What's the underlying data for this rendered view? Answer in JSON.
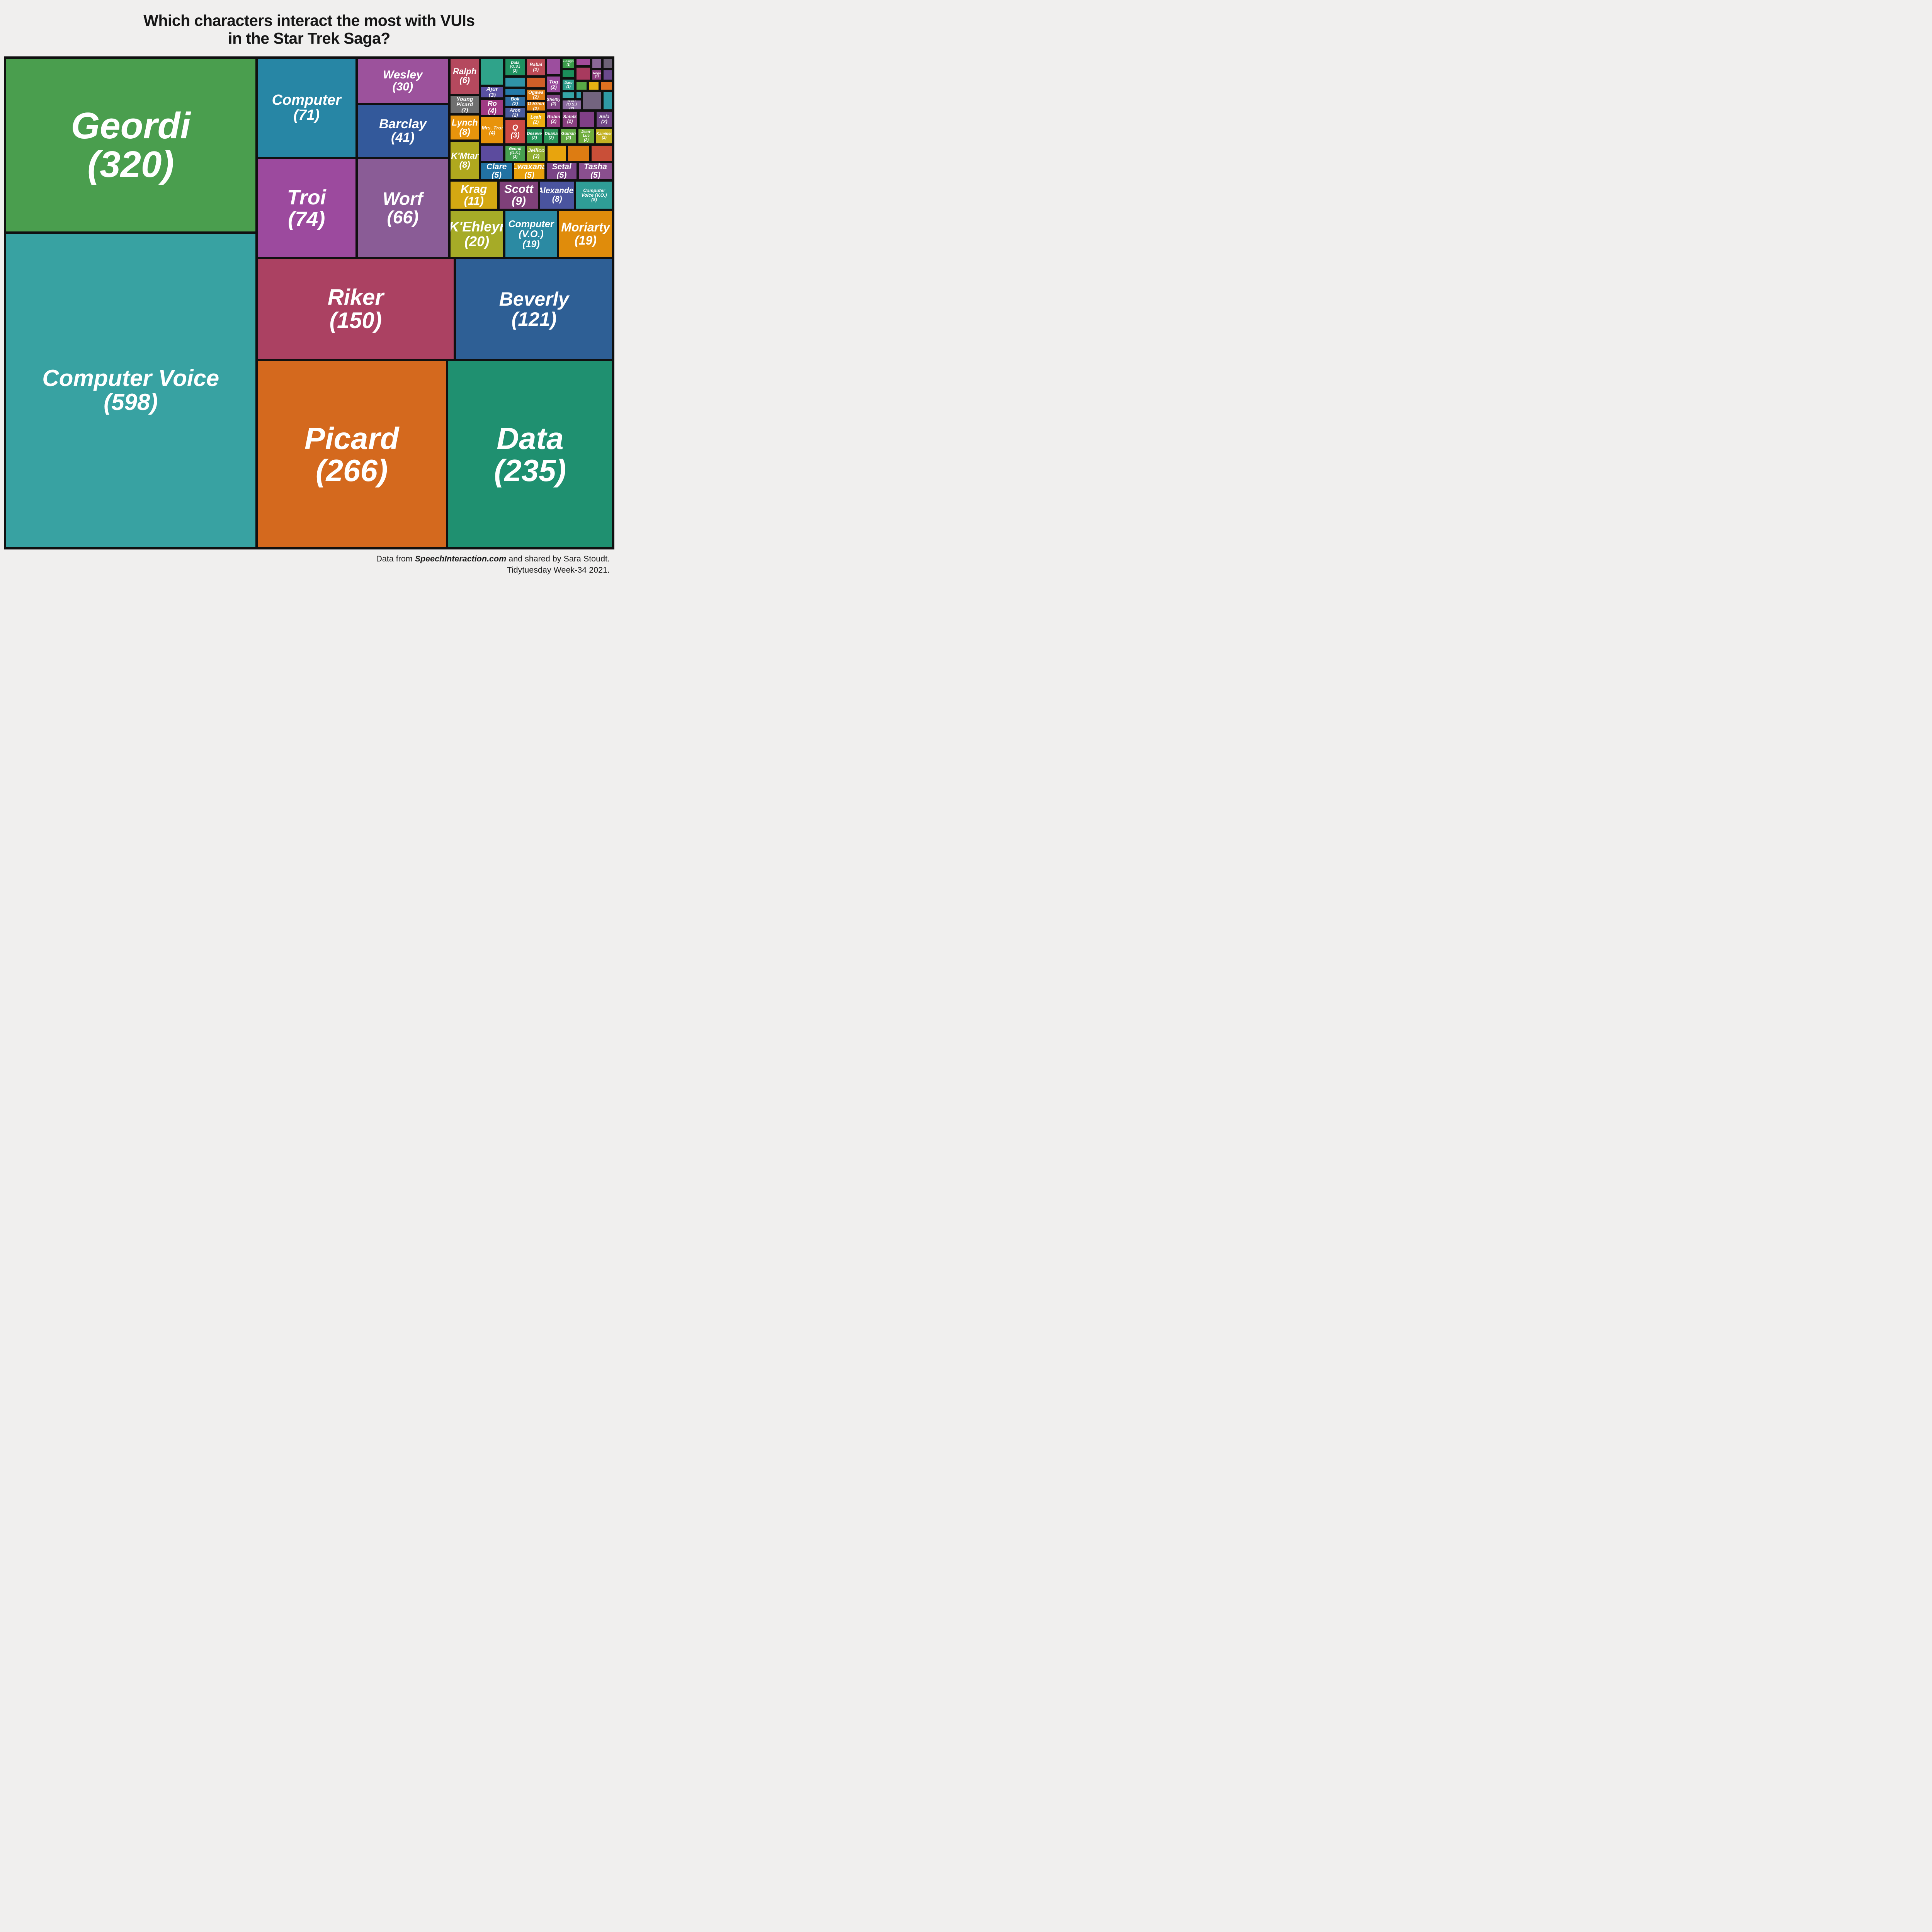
{
  "page": {
    "background": "#f0efee"
  },
  "title": {
    "line1": "Which characters interact the most with VUIs",
    "line2": "in the Star Trek Saga?"
  },
  "footer": {
    "line1_pre": "Data from ",
    "line1_em": "SpeechInteraction.com",
    "line1_post": " and shared by Sara Stoudt.",
    "line2": "Tidytuesday Week-34 2021."
  },
  "chart_data": {
    "type": "treemap",
    "title": "Which characters interact the most with VUIs in the Star Trek Saga?",
    "unit": "VUI interactions",
    "legend": "none",
    "small_region": {
      "x": 73.06,
      "y": 0,
      "w": 26.94,
      "h": 40.86
    },
    "cells": [
      {
        "name": "Geordi",
        "value": 320,
        "region": "main",
        "x": 0,
        "y": 0,
        "w": 41.34,
        "h": 35.67,
        "color": "#4a9e4e",
        "fs": 96
      },
      {
        "name": "Computer Voice",
        "value": 598,
        "region": "main",
        "x": 0,
        "y": 35.67,
        "w": 41.34,
        "h": 64.33,
        "color": "#38a2a2",
        "fs": 60
      },
      {
        "name": "Computer",
        "value": 71,
        "region": "main",
        "x": 41.34,
        "y": 0,
        "w": 16.47,
        "h": 20.51,
        "color": "#2786a5",
        "fs": 38
      },
      {
        "name": "Troi",
        "value": 74,
        "region": "main",
        "x": 41.34,
        "y": 20.51,
        "w": 16.47,
        "h": 20.35,
        "color": "#9c4a9e",
        "fs": 54
      },
      {
        "name": "Wesley",
        "value": 30,
        "region": "main",
        "x": 57.81,
        "y": 0,
        "w": 15.18,
        "h": 9.42,
        "color": "#9c529c",
        "fs": 30
      },
      {
        "name": "Barclay",
        "value": 41,
        "region": "main",
        "x": 57.81,
        "y": 9.42,
        "w": 15.18,
        "h": 11.09,
        "color": "#33599b",
        "fs": 34
      },
      {
        "name": "Worf",
        "value": 66,
        "region": "main",
        "x": 57.81,
        "y": 20.51,
        "w": 15.18,
        "h": 20.35,
        "color": "#8a5c96",
        "fs": 46
      },
      {
        "name": "Riker",
        "value": 150,
        "region": "main",
        "x": 41.34,
        "y": 40.86,
        "w": 32.62,
        "h": 20.83,
        "color": "#ab4162",
        "fs": 58
      },
      {
        "name": "Beverly",
        "value": 121,
        "region": "main",
        "x": 73.96,
        "y": 40.86,
        "w": 26.04,
        "h": 20.83,
        "color": "#2e5f95",
        "fs": 50
      },
      {
        "name": "Picard",
        "value": 266,
        "region": "main",
        "x": 41.34,
        "y": 61.69,
        "w": 31.33,
        "h": 38.31,
        "color": "#d4691e",
        "fs": 80
      },
      {
        "name": "Data",
        "value": 235,
        "region": "main",
        "x": 72.67,
        "y": 61.69,
        "w": 27.33,
        "h": 38.31,
        "color": "#1f9070",
        "fs": 80
      },
      {
        "name": "Ralph",
        "value": 6,
        "region": "small",
        "x": 0,
        "y": 0,
        "w": 18.75,
        "h": 18.6,
        "color": "#b5495e",
        "fs": 22
      },
      {
        "name": "Young Picard",
        "value": 7,
        "region": "small",
        "x": 0,
        "y": 18.6,
        "w": 18.75,
        "h": 9.7,
        "color": "#6f6f6f",
        "fs": 14
      },
      {
        "name": "Lynch",
        "value": 8,
        "region": "small",
        "x": 0,
        "y": 28.3,
        "w": 18.75,
        "h": 13.1,
        "color": "#e8940c",
        "fs": 23
      },
      {
        "name": "K'Mtar",
        "value": 8,
        "region": "small",
        "x": 0,
        "y": 41.4,
        "w": 18.75,
        "h": 19.9,
        "color": "#b0a81e",
        "fs": 23
      },
      {
        "name": "",
        "value": null,
        "region": "small",
        "x": 18.75,
        "y": 0,
        "w": 14.8,
        "h": 14.1,
        "color": "#2fa38a",
        "fs": 0
      },
      {
        "name": "Ajur",
        "value": 3,
        "region": "small",
        "x": 18.75,
        "y": 14.1,
        "w": 14.8,
        "h": 6.4,
        "color": "#5951a2",
        "fs": 15
      },
      {
        "name": "Ro",
        "value": 4,
        "region": "small",
        "x": 18.75,
        "y": 20.5,
        "w": 14.8,
        "h": 8.6,
        "color": "#a03a84",
        "fs": 18
      },
      {
        "name": "Mrs. Troi",
        "value": 4,
        "region": "small",
        "x": 18.75,
        "y": 29.1,
        "w": 14.8,
        "h": 14.3,
        "color": "#e8930b",
        "fs": 13
      },
      {
        "name": "",
        "value": null,
        "region": "small",
        "x": 18.75,
        "y": 43.4,
        "w": 14.8,
        "h": 8.7,
        "color": "#5c4b9e",
        "fs": 0
      },
      {
        "name": "Data (O.S.)",
        "value": 2,
        "region": "small",
        "x": 33.55,
        "y": 0,
        "w": 13.15,
        "h": 9.5,
        "color": "#1f9160",
        "fs": 10
      },
      {
        "name": "",
        "value": null,
        "region": "small",
        "x": 33.55,
        "y": 9.5,
        "w": 13.15,
        "h": 5.5,
        "color": "#2f93a8",
        "fs": 0
      },
      {
        "name": "",
        "value": null,
        "region": "small",
        "x": 33.55,
        "y": 15.0,
        "w": 13.15,
        "h": 4.0,
        "color": "#2379a8",
        "fs": 0
      },
      {
        "name": "Bok",
        "value": 2,
        "region": "small",
        "x": 33.55,
        "y": 19.0,
        "w": 13.15,
        "h": 5.6,
        "color": "#2f6ea3",
        "fs": 12
      },
      {
        "name": "Aron",
        "value": 2,
        "region": "small",
        "x": 33.55,
        "y": 24.6,
        "w": 13.15,
        "h": 5.9,
        "color": "#4a5a9b",
        "fs": 12
      },
      {
        "name": "Q",
        "value": 3,
        "region": "small",
        "x": 33.55,
        "y": 30.5,
        "w": 13.15,
        "h": 12.9,
        "color": "#cc4a44",
        "fs": 19
      },
      {
        "name": "Geordi (O.S.)",
        "value": 3,
        "region": "small",
        "x": 33.55,
        "y": 43.4,
        "w": 13.15,
        "h": 8.7,
        "color": "#46a050",
        "fs": 10
      },
      {
        "name": "Rabal",
        "value": 2,
        "region": "small",
        "x": 46.7,
        "y": 0,
        "w": 12.2,
        "h": 9.5,
        "color": "#bc4a55",
        "fs": 12
      },
      {
        "name": "",
        "value": null,
        "region": "small",
        "x": 46.7,
        "y": 9.5,
        "w": 12.2,
        "h": 6.0,
        "color": "#d05f28",
        "fs": 0
      },
      {
        "name": "Ogawa",
        "value": 2,
        "region": "small",
        "x": 46.7,
        "y": 15.5,
        "w": 12.2,
        "h": 6.0,
        "color": "#dd7f16",
        "fs": 12
      },
      {
        "name": "O'Brien",
        "value": 2,
        "region": "small",
        "x": 46.7,
        "y": 21.5,
        "w": 12.2,
        "h": 5.5,
        "color": "#e08414",
        "fs": 12
      },
      {
        "name": "Leah",
        "value": 2,
        "region": "small",
        "x": 46.7,
        "y": 27.0,
        "w": 12.2,
        "h": 8.0,
        "color": "#ecad10",
        "fs": 12
      },
      {
        "name": "Deseve",
        "value": 2,
        "region": "small",
        "x": 46.7,
        "y": 35.0,
        "w": 10.3,
        "h": 8.4,
        "color": "#23935c",
        "fs": 11
      },
      {
        "name": "Duana",
        "value": 2,
        "region": "small",
        "x": 57.0,
        "y": 35.0,
        "w": 10.3,
        "h": 8.4,
        "color": "#2b9458",
        "fs": 11
      },
      {
        "name": "Guinan",
        "value": 2,
        "region": "small",
        "x": 67.3,
        "y": 35.0,
        "w": 10.8,
        "h": 8.4,
        "color": "#62a844",
        "fs": 11
      },
      {
        "name": "Jean-Luc",
        "value": 2,
        "region": "small",
        "x": 78.1,
        "y": 35.0,
        "w": 10.9,
        "h": 8.4,
        "color": "#6fad3d",
        "fs": 10
      },
      {
        "name": "Kaminer",
        "value": 2,
        "region": "small",
        "x": 89.0,
        "y": 35.0,
        "w": 11.0,
        "h": 8.4,
        "color": "#c3b122",
        "fs": 10
      },
      {
        "name": "",
        "value": null,
        "region": "small",
        "x": 58.9,
        "y": 0,
        "w": 9.5,
        "h": 8.8,
        "color": "#9c4e9e",
        "fs": 0
      },
      {
        "name": "Tog",
        "value": 2,
        "region": "small",
        "x": 58.9,
        "y": 8.8,
        "w": 9.5,
        "h": 9.2,
        "color": "#97499b",
        "fs": 13
      },
      {
        "name": "Shelby",
        "value": 2,
        "region": "small",
        "x": 58.9,
        "y": 18.0,
        "w": 9.5,
        "h": 8.4,
        "color": "#7f4583",
        "fs": 11
      },
      {
        "name": "Robin",
        "value": 2,
        "region": "small",
        "x": 58.9,
        "y": 26.4,
        "w": 9.5,
        "h": 8.6,
        "color": "#993d80",
        "fs": 12
      },
      {
        "name": "Ensign",
        "value": 1,
        "region": "small",
        "x": 68.4,
        "y": 0,
        "w": 8.6,
        "h": 5.7,
        "color": "#3a9b4a",
        "fs": 8
      },
      {
        "name": "",
        "value": null,
        "region": "small",
        "x": 68.4,
        "y": 5.7,
        "w": 8.6,
        "h": 4.8,
        "color": "#1b8f5a",
        "fs": 0
      },
      {
        "name": "Daro",
        "value": 1,
        "region": "small",
        "x": 68.4,
        "y": 10.5,
        "w": 8.6,
        "h": 6.3,
        "color": "#2d9e8c",
        "fs": 9
      },
      {
        "name": "",
        "value": null,
        "region": "small",
        "x": 68.4,
        "y": 16.8,
        "w": 8.6,
        "h": 4.0,
        "color": "#35a5a5",
        "fs": 0
      },
      {
        "name": "Worf (O.S.)",
        "value": 2,
        "region": "small",
        "x": 68.4,
        "y": 20.8,
        "w": 12.4,
        "h": 5.6,
        "color": "#8a6a9e",
        "fs": 10
      },
      {
        "name": "Satelk",
        "value": 2,
        "region": "small",
        "x": 68.4,
        "y": 26.4,
        "w": 10.4,
        "h": 8.6,
        "color": "#8a4080",
        "fs": 12
      },
      {
        "name": "",
        "value": null,
        "region": "small",
        "x": 78.8,
        "y": 26.4,
        "w": 10.3,
        "h": 8.6,
        "color": "#803f86",
        "fs": 0
      },
      {
        "name": "Sela",
        "value": 2,
        "region": "small",
        "x": 89.1,
        "y": 26.4,
        "w": 10.9,
        "h": 8.6,
        "color": "#6f4484",
        "fs": 13
      },
      {
        "name": "",
        "value": null,
        "region": "small",
        "x": 77.0,
        "y": 0,
        "w": 9.6,
        "h": 4.5,
        "color": "#a34a9a",
        "fs": 0
      },
      {
        "name": "",
        "value": null,
        "region": "small",
        "x": 77.0,
        "y": 4.5,
        "w": 9.6,
        "h": 7.0,
        "color": "#a83a5e",
        "fs": 0
      },
      {
        "name": "",
        "value": null,
        "region": "small",
        "x": 86.6,
        "y": 0,
        "w": 6.9,
        "h": 5.8,
        "color": "#8a6898",
        "fs": 0
      },
      {
        "name": "",
        "value": null,
        "region": "small",
        "x": 93.5,
        "y": 0,
        "w": 6.5,
        "h": 5.8,
        "color": "#6d6276",
        "fs": 0
      },
      {
        "name": "Roga",
        "value": 1,
        "region": "small",
        "x": 86.6,
        "y": 5.8,
        "w": 6.9,
        "h": 5.7,
        "color": "#8f3f80",
        "fs": 8
      },
      {
        "name": "",
        "value": null,
        "region": "small",
        "x": 93.5,
        "y": 5.8,
        "w": 6.5,
        "h": 5.7,
        "color": "#6a4a8c",
        "fs": 0
      },
      {
        "name": "",
        "value": null,
        "region": "small",
        "x": 77.0,
        "y": 11.5,
        "w": 7.4,
        "h": 5.0,
        "color": "#58a846",
        "fs": 0
      },
      {
        "name": "",
        "value": null,
        "region": "small",
        "x": 84.4,
        "y": 11.5,
        "w": 7.3,
        "h": 5.0,
        "color": "#e3b112",
        "fs": 0
      },
      {
        "name": "",
        "value": null,
        "region": "small",
        "x": 91.7,
        "y": 11.5,
        "w": 8.3,
        "h": 5.0,
        "color": "#dd7220",
        "fs": 0
      },
      {
        "name": "",
        "value": null,
        "region": "small",
        "x": 77.0,
        "y": 16.5,
        "w": 3.8,
        "h": 4.3,
        "color": "#2f9aa5",
        "fs": 0
      },
      {
        "name": "",
        "value": null,
        "region": "small",
        "x": 80.8,
        "y": 16.5,
        "w": 12.5,
        "h": 9.9,
        "color": "#73647f",
        "fs": 0
      },
      {
        "name": "",
        "value": null,
        "region": "small",
        "x": 93.3,
        "y": 16.5,
        "w": 6.7,
        "h": 9.9,
        "color": "#2f9aa5",
        "fs": 0
      },
      {
        "name": "Jellico",
        "value": 3,
        "region": "small",
        "x": 46.7,
        "y": 43.4,
        "w": 12.6,
        "h": 8.7,
        "color": "#8fad30",
        "fs": 14
      },
      {
        "name": "",
        "value": null,
        "region": "small",
        "x": 59.3,
        "y": 43.4,
        "w": 12.5,
        "h": 8.7,
        "color": "#e8a40d",
        "fs": 0
      },
      {
        "name": "",
        "value": null,
        "region": "small",
        "x": 71.8,
        "y": 43.4,
        "w": 14.4,
        "h": 8.7,
        "color": "#dd7c12",
        "fs": 0
      },
      {
        "name": "",
        "value": null,
        "region": "small",
        "x": 86.2,
        "y": 43.4,
        "w": 13.8,
        "h": 8.7,
        "color": "#c94f38",
        "fs": 0
      },
      {
        "name": "Clare",
        "value": 5,
        "region": "small",
        "x": 18.75,
        "y": 52.1,
        "w": 20.15,
        "h": 9.2,
        "color": "#2272a3",
        "fs": 21
      },
      {
        "name": "Lwaxana",
        "value": 5,
        "region": "small",
        "x": 38.9,
        "y": 52.1,
        "w": 19.9,
        "h": 9.2,
        "color": "#e8a00c",
        "fs": 21
      },
      {
        "name": "Setal",
        "value": 5,
        "region": "small",
        "x": 58.8,
        "y": 52.1,
        "w": 19.5,
        "h": 9.2,
        "color": "#7a4486",
        "fs": 21
      },
      {
        "name": "Tasha",
        "value": 5,
        "region": "small",
        "x": 78.3,
        "y": 52.1,
        "w": 21.7,
        "h": 9.2,
        "color": "#8a4f8e",
        "fs": 21
      },
      {
        "name": "Krag",
        "value": 11,
        "region": "small",
        "x": 0,
        "y": 61.3,
        "w": 29.9,
        "h": 14.7,
        "color": "#d4a812",
        "fs": 30
      },
      {
        "name": "Scott",
        "value": 9,
        "region": "small",
        "x": 29.9,
        "y": 61.3,
        "w": 24.9,
        "h": 14.7,
        "color": "#7f4079",
        "fs": 30
      },
      {
        "name": "Alexander",
        "value": 8,
        "region": "small",
        "x": 54.8,
        "y": 61.3,
        "w": 21.9,
        "h": 14.7,
        "color": "#4a549e",
        "fs": 21
      },
      {
        "name": "Computer Voice (V.O.)",
        "value": 8,
        "region": "small",
        "x": 76.7,
        "y": 61.3,
        "w": 23.3,
        "h": 14.7,
        "color": "#2f9d96",
        "fs": 12
      },
      {
        "name": "K'Ehleyr",
        "value": 20,
        "region": "small",
        "x": 0,
        "y": 76.0,
        "w": 33.55,
        "h": 24.0,
        "color": "#a6ab27",
        "fs": 36
      },
      {
        "name": "Computer (V.O.)",
        "value": 19,
        "region": "small",
        "x": 33.55,
        "y": 76.0,
        "w": 32.7,
        "h": 24.0,
        "color": "#2b8aa3",
        "fs": 25
      },
      {
        "name": "Moriarty",
        "value": 19,
        "region": "small",
        "x": 66.25,
        "y": 76.0,
        "w": 33.75,
        "h": 24.0,
        "color": "#e08c0b",
        "fs": 32
      }
    ]
  }
}
